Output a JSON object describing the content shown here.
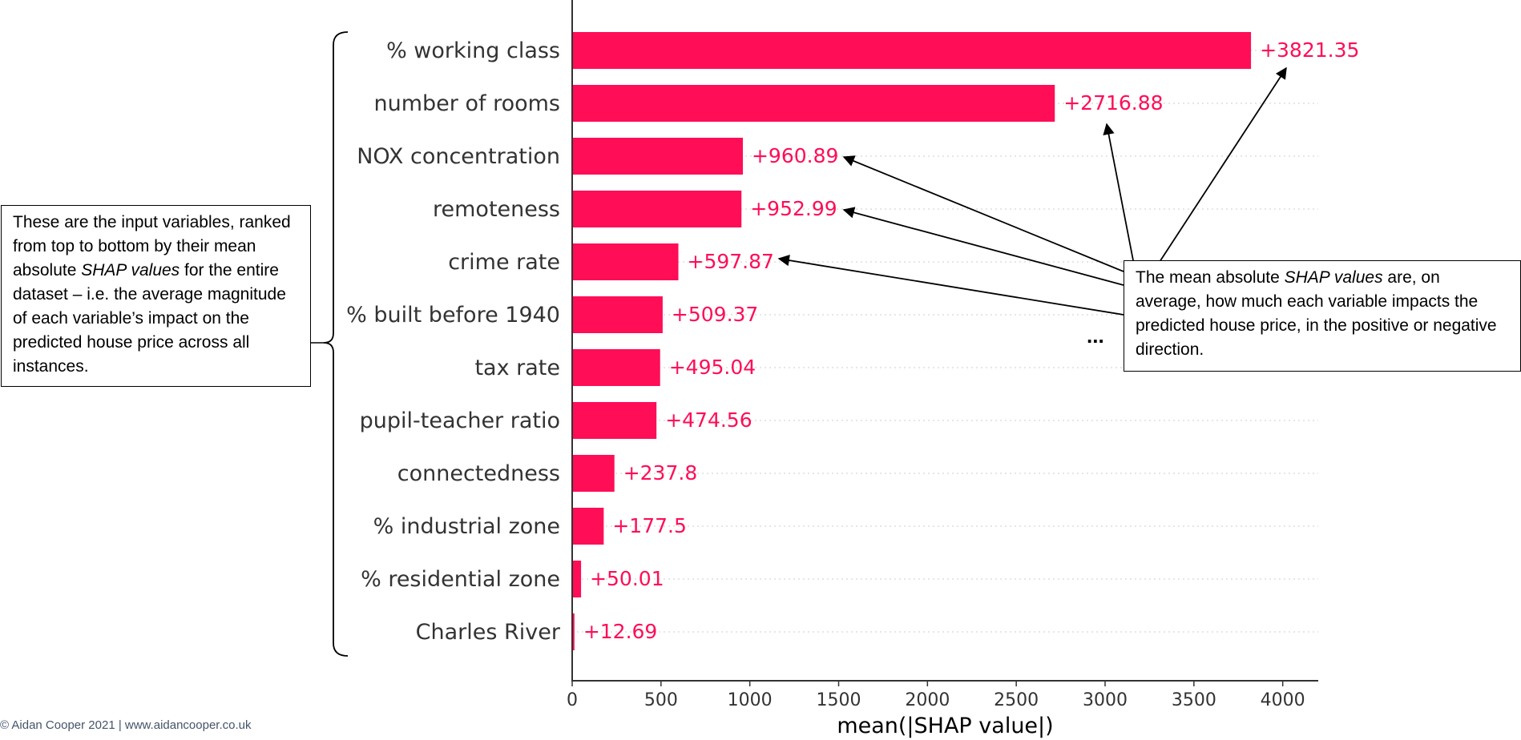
{
  "chart_data": {
    "type": "bar",
    "orientation": "horizontal",
    "categories": [
      "% working class",
      "number of rooms",
      "NOX concentration",
      "remoteness",
      "crime rate",
      "% built before 1940",
      "tax rate",
      "pupil-teacher ratio",
      "connectedness",
      "% industrial zone",
      "% residential zone",
      "Charles River"
    ],
    "values": [
      3821.35,
      2716.88,
      960.89,
      952.99,
      597.87,
      509.37,
      495.04,
      474.56,
      237.8,
      177.5,
      50.01,
      12.69
    ],
    "labels": [
      "+3821.35",
      "+2716.88",
      "+960.89",
      "+952.99",
      "+597.87",
      "+509.37",
      "+495.04",
      "+474.56",
      "+237.8",
      "+177.5",
      "+50.01",
      "+12.69"
    ],
    "xlabel": "mean(|SHAP value|)",
    "ylabel": "",
    "title": "",
    "xlim": [
      0,
      4200
    ],
    "xticks": [
      0,
      500,
      1000,
      1500,
      2000,
      2500,
      3000,
      3500,
      4000
    ],
    "xtick_labels": [
      "0",
      "500",
      "1000",
      "1500",
      "2000",
      "2500",
      "3000",
      "3500",
      "4000"
    ],
    "bar_color": "#ff0d57",
    "grid": "dotted horizontal guide lines"
  },
  "annotations": {
    "left_box": {
      "before": "These are the input variables, ranked from top to bottom by their mean absolute ",
      "emph": "SHAP values",
      "after": " for the entire dataset – i.e. the average magnitude of each variable’s impact on the predicted house price across all instances."
    },
    "right_box": {
      "before": "The mean absolute ",
      "emph": "SHAP values",
      "after": " are, on average, how much each variable impacts the predicted house price, in the positive or negative direction."
    },
    "ellipsis": "...",
    "credit": "© Aidan Cooper 2021 | www.aidancooper.co.uk"
  },
  "colors": {
    "bar": "#ff0d57",
    "label_text": "#ff0d57",
    "axis_text": "#333333",
    "category_text": "#333333"
  }
}
